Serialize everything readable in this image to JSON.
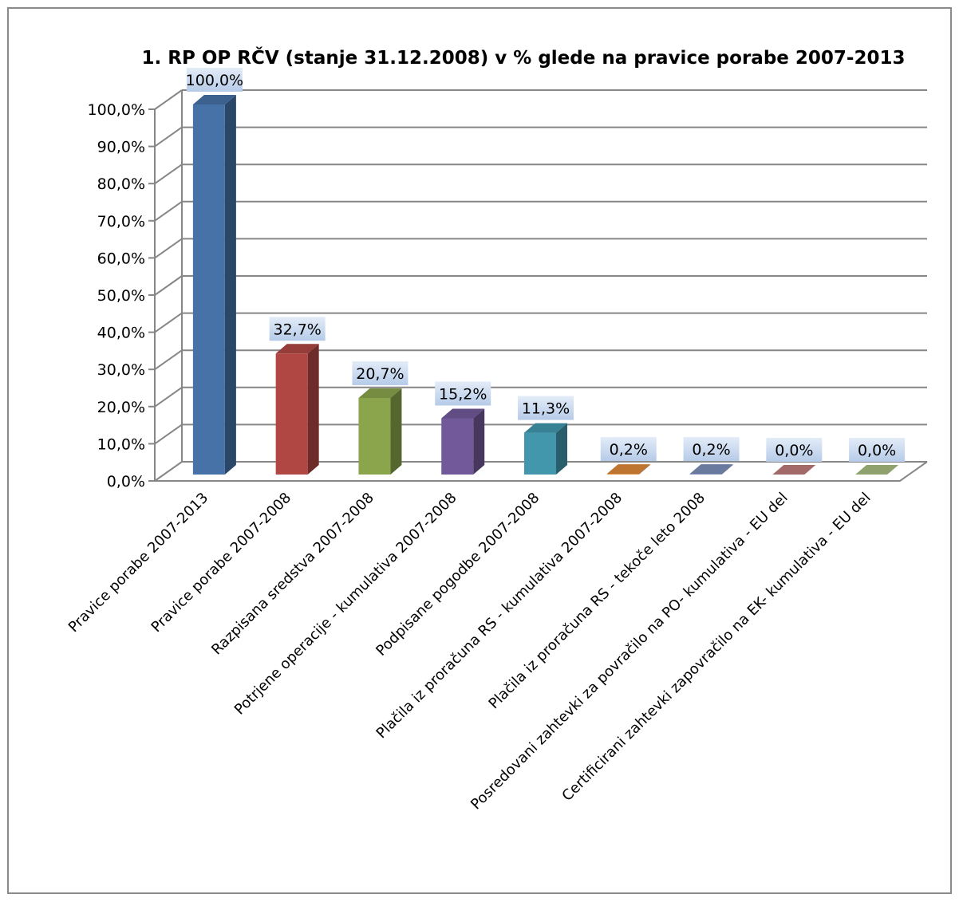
{
  "chart_data": {
    "type": "bar",
    "title": "1. RP OP RČV (stanje 31.12.2008) v % glede na pravice porabe 2007-2013",
    "categories": [
      "Pravice porabe 2007-2013",
      "Pravice porabe 2007-2008",
      "Razpisana sredstva 2007-2008",
      "Potrjene operacije - kumulativa 2007-2008",
      "Podpisane pogodbe 2007-2008",
      "Plačila iz proračuna RS - kumulativa 2007-2008",
      "Plačila iz proračuna RS - tekoče leto 2008",
      "Posredovani zahtevki za povračilo na PO- kumulativa - EU del",
      "Certificirani zahtevki zapovračilo na EK- kumulativa - EU del"
    ],
    "values": [
      100.0,
      32.7,
      20.7,
      15.2,
      11.3,
      0.2,
      0.2,
      0.0,
      0.0
    ],
    "data_labels": [
      "100,0%",
      "32,7%",
      "20,7%",
      "15,2%",
      "11,3%",
      "0,2%",
      "0,2%",
      "0,0%",
      "0,0%"
    ],
    "y_ticks": [
      "0,0%",
      "10,0%",
      "20,0%",
      "30,0%",
      "40,0%",
      "50,0%",
      "60,0%",
      "70,0%",
      "80,0%",
      "90,0%",
      "100,0%"
    ],
    "ylim": [
      0,
      100
    ],
    "xlabel": "",
    "ylabel": "",
    "grid": true,
    "legend": "none",
    "three_d": true,
    "colors": [
      "#4672a8",
      "#b04743",
      "#8aa54c",
      "#72599a",
      "#4297ad",
      "#e08a3a",
      "#7b8fba",
      "#c07c7b",
      "#a8bf80"
    ]
  }
}
